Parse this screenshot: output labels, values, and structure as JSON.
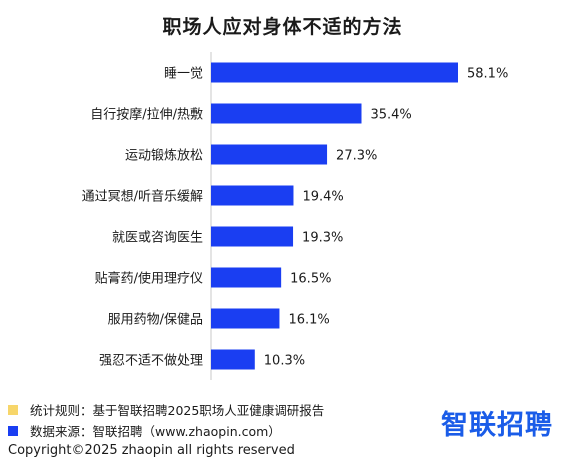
{
  "chart_data": {
    "type": "bar",
    "orientation": "horizontal",
    "title": "职场人应对身体不适的方法",
    "categories": [
      "睡一觉",
      "自行按摩/拉伸/热敷",
      "运动锻炼放松",
      "通过冥想/听音乐缓解",
      "就医或咨询医生",
      "贴膏药/使用理疗仪",
      "服用药物/保健品",
      "强忍不适不做处理"
    ],
    "values": [
      58.1,
      35.4,
      27.3,
      19.4,
      19.3,
      16.5,
      16.1,
      10.3
    ],
    "value_labels": [
      "58.1%",
      "35.4%",
      "27.3%",
      "19.4%",
      "19.3%",
      "16.5%",
      "16.1%",
      "10.3%"
    ],
    "xlim": [
      0,
      58.1
    ],
    "grid": false,
    "bar_color": "#1a3ef2",
    "axis_color": "#c8c8c8"
  },
  "footer": {
    "rule_text": "统计规则：基于智联招聘2025职场人亚健康调研报告",
    "rule_color": "#f7d66a",
    "source_text": "数据来源：智联招聘（www.zhaopin.com）",
    "source_color": "#1a3ef2"
  },
  "brand": {
    "logo_text": "智联招聘"
  },
  "copyright": "Copyright©2025 zhaopin all rights reserved"
}
